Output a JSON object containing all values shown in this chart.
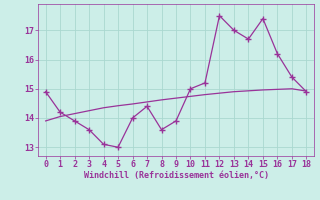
{
  "xlabel": "Windchill (Refroidissement éolien,°C)",
  "x_values": [
    0,
    1,
    2,
    3,
    4,
    5,
    6,
    7,
    8,
    9,
    10,
    11,
    12,
    13,
    14,
    15,
    16,
    17,
    18
  ],
  "y_main": [
    14.9,
    14.2,
    13.9,
    13.6,
    13.1,
    13.0,
    14.0,
    14.4,
    13.6,
    13.9,
    15.0,
    15.2,
    17.5,
    17.0,
    16.7,
    17.4,
    16.2,
    15.4,
    14.9
  ],
  "y_trend": [
    13.9,
    14.05,
    14.15,
    14.25,
    14.35,
    14.42,
    14.48,
    14.55,
    14.62,
    14.68,
    14.74,
    14.8,
    14.85,
    14.9,
    14.93,
    14.96,
    14.98,
    15.0,
    14.92
  ],
  "line_color": "#993399",
  "bg_color": "#cceee8",
  "grid_color": "#aad8d0",
  "ylim": [
    12.7,
    17.9
  ],
  "xlim": [
    -0.5,
    18.5
  ],
  "yticks": [
    13,
    14,
    15,
    16,
    17
  ],
  "xticks": [
    0,
    1,
    2,
    3,
    4,
    5,
    6,
    7,
    8,
    9,
    10,
    11,
    12,
    13,
    14,
    15,
    16,
    17,
    18
  ]
}
